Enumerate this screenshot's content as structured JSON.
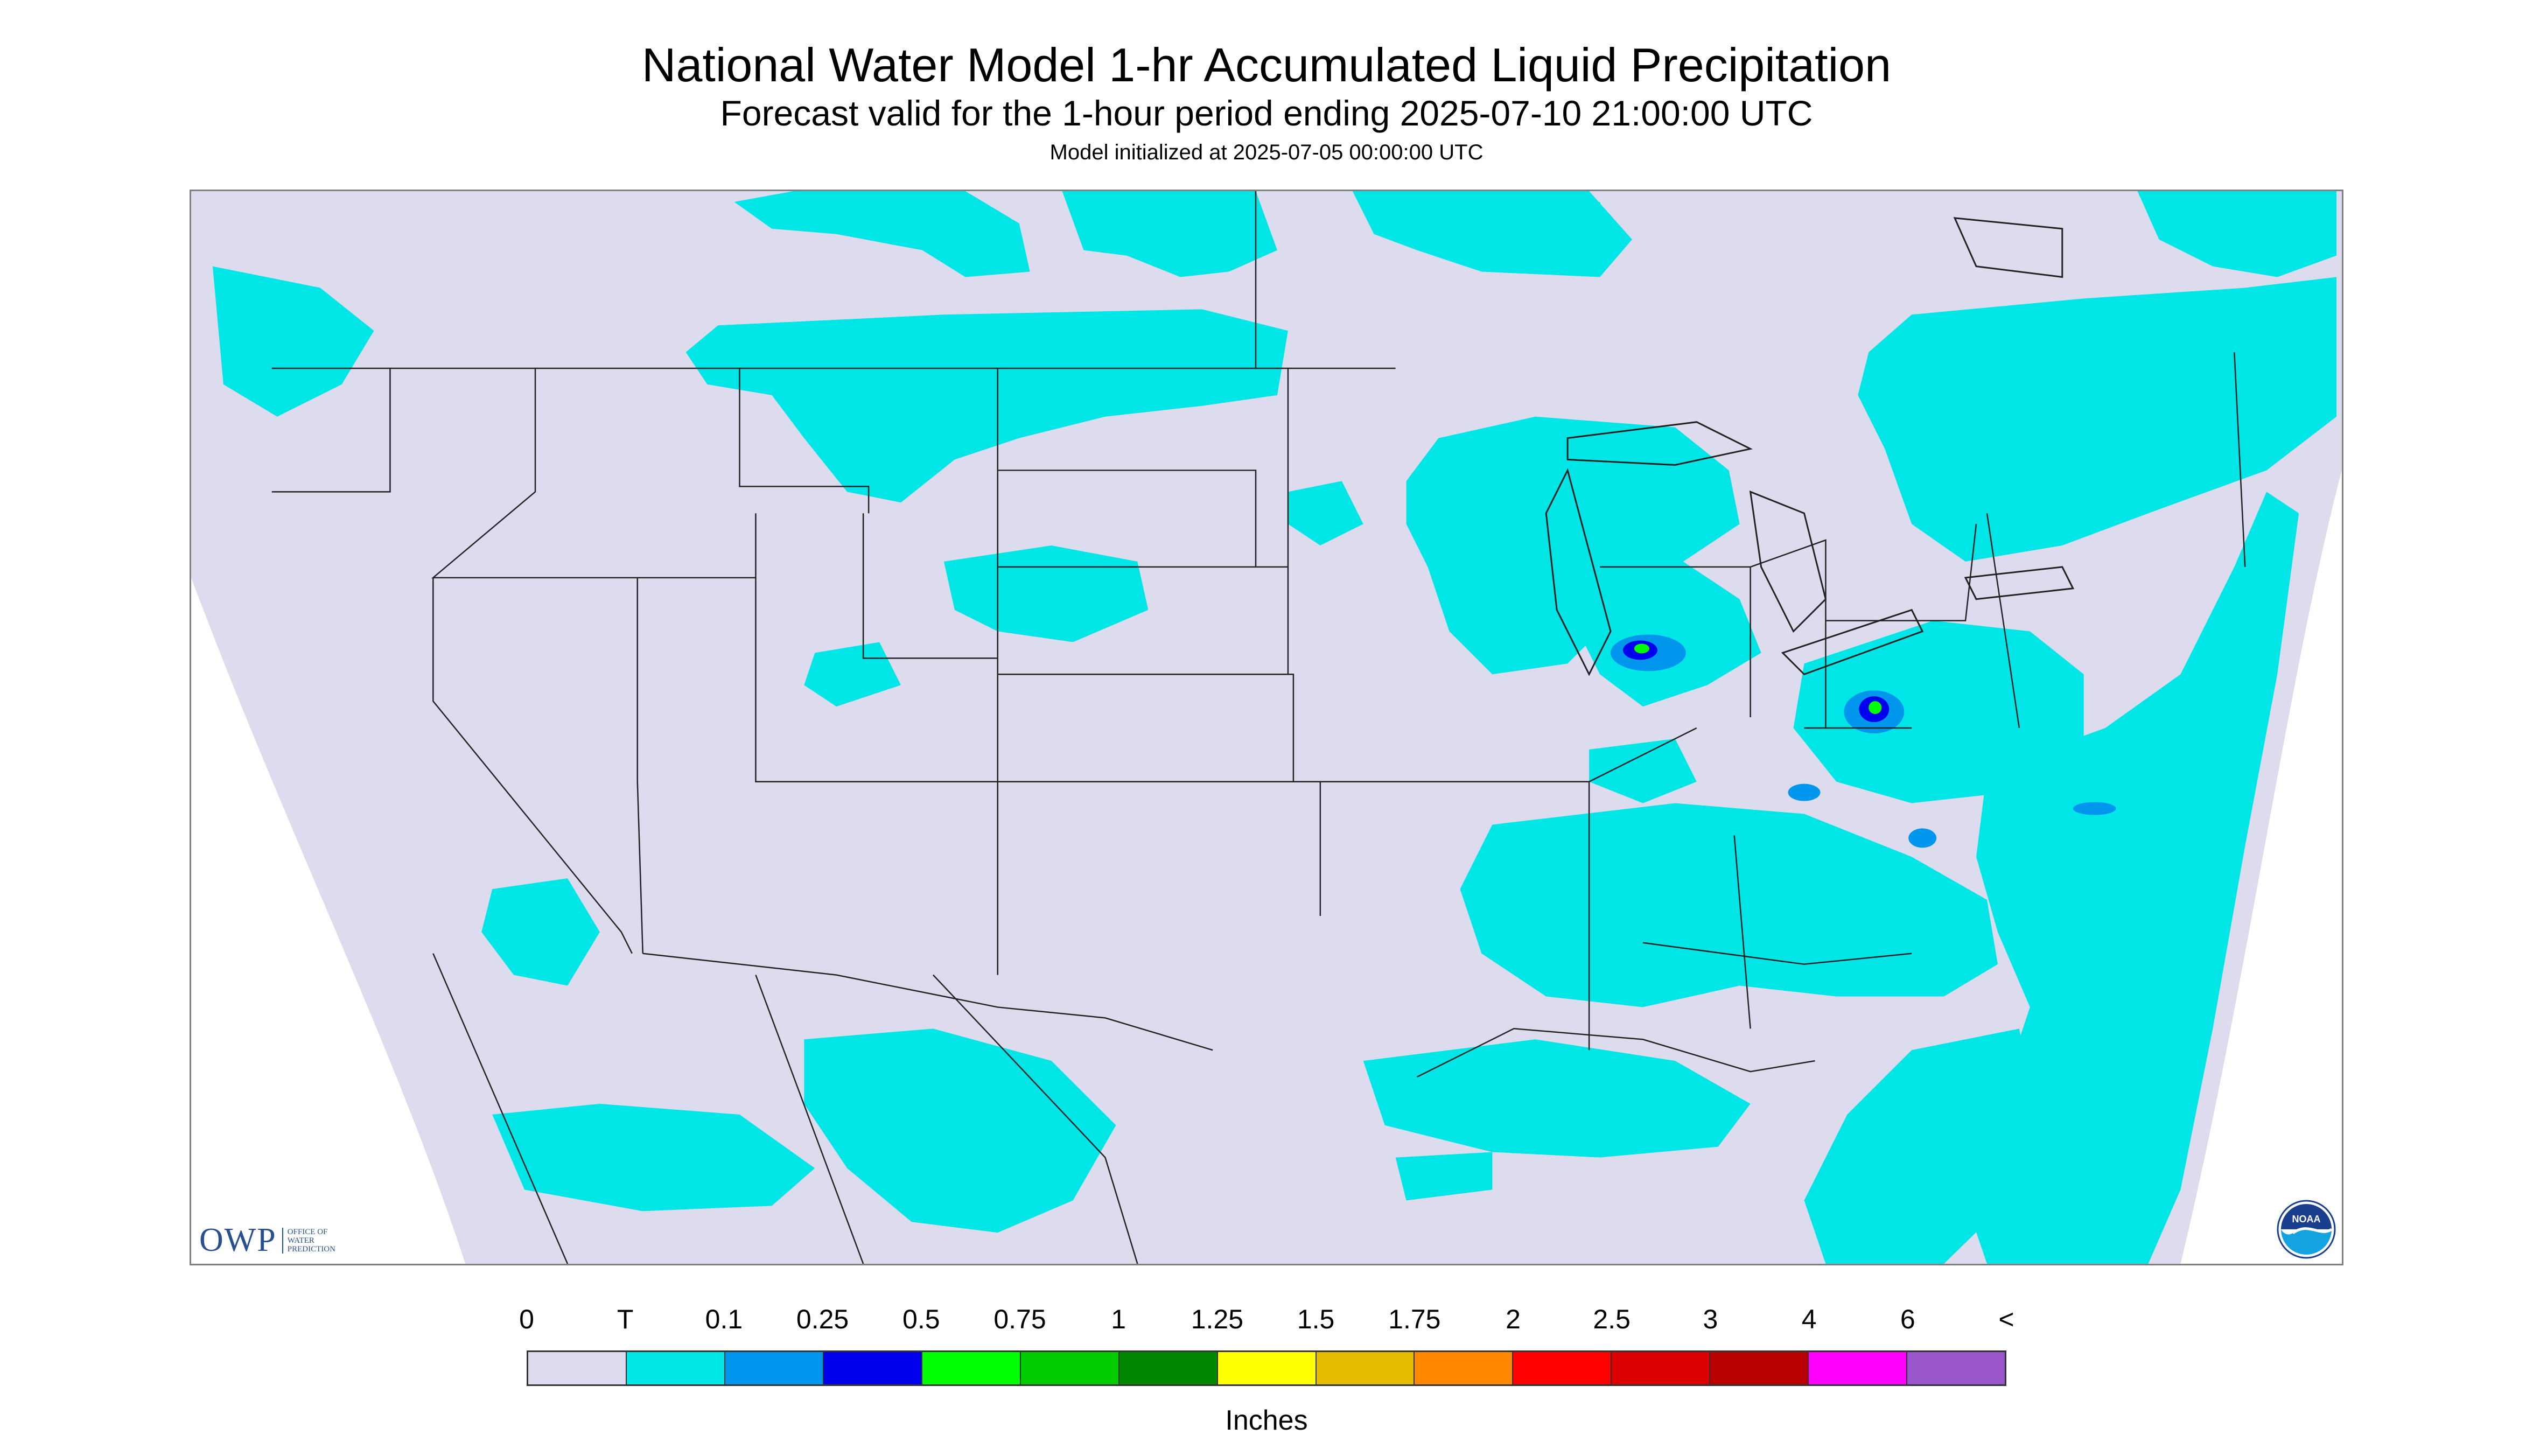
{
  "title": "National Water Model 1-hr Accumulated Liquid Precipitation",
  "subtitle": "Forecast valid for the 1-hour period ending 2025-07-10 21:00:00 UTC",
  "init_text": "Model initialized at 2025-07-05 00:00:00 UTC",
  "logos": {
    "owp_letters": "OWP",
    "owp_lines": [
      "OFFICE OF",
      "WATER",
      "PREDICTION"
    ],
    "noaa_text": "NOAA"
  },
  "legend": {
    "labels": [
      "0",
      "T",
      "0.1",
      "0.25",
      "0.5",
      "0.75",
      "1",
      "1.25",
      "1.5",
      "1.75",
      "2",
      "2.5",
      "3",
      "4",
      "6",
      "<"
    ],
    "colors": [
      "#dcdcee",
      "#00e6e6",
      "#0096ee",
      "#0000ee",
      "#00ff00",
      "#00cc00",
      "#008800",
      "#ffff00",
      "#e6bb00",
      "#ff8800",
      "#ff0000",
      "#dd0000",
      "#bb0000",
      "#ff00ff",
      "#9955cc"
    ],
    "units": "Inches"
  },
  "map_colors": {
    "no_data": "#ffffff",
    "domain_background": "#dcdcee",
    "trace": "#00e6e6",
    "light": "#0096ee",
    "moderate": "#0000ee",
    "heavy": "#00ff00",
    "borders": "#222222"
  }
}
